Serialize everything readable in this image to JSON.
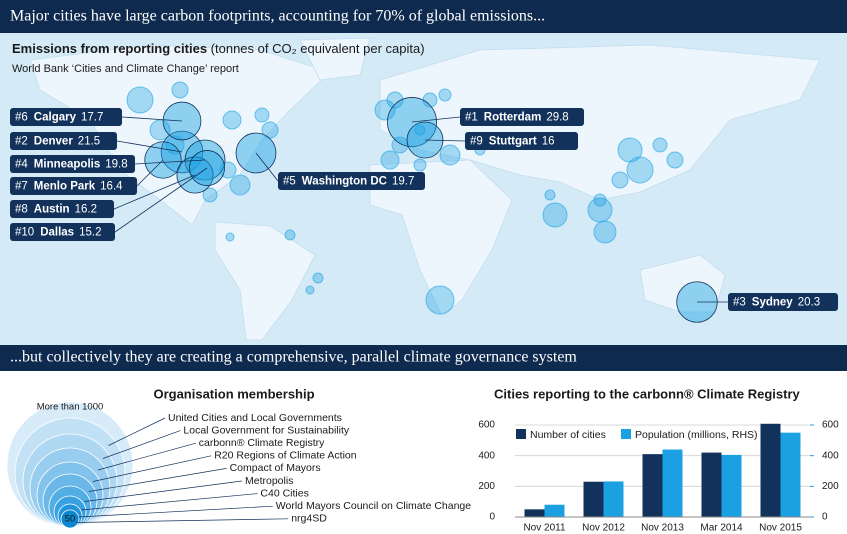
{
  "banner_top": "Major cities have large carbon footprints, accounting for 70% of global emissions...",
  "map": {
    "title": "Emissions from reporting cities",
    "title_note": "(tonnes of CO₂ equivalent per capita)",
    "subtitle": "World Bank ‘Cities and Climate Change’ report",
    "cities": [
      {
        "rank": "#1",
        "name": "Rotterdam",
        "value": 29.8
      },
      {
        "rank": "#2",
        "name": "Denver",
        "value": 21.5
      },
      {
        "rank": "#3",
        "name": "Sydney",
        "value": 20.3
      },
      {
        "rank": "#4",
        "name": "Minneapolis",
        "value": 19.8
      },
      {
        "rank": "#5",
        "name": "Washington DC",
        "value": 19.7
      },
      {
        "rank": "#6",
        "name": "Calgary",
        "value": 17.7
      },
      {
        "rank": "#7",
        "name": "Menlo Park",
        "value": 16.4
      },
      {
        "rank": "#8",
        "name": "Austin",
        "value": 16.2
      },
      {
        "rank": "#9",
        "name": "Stuttgart",
        "value": 16.0
      },
      {
        "rank": "#10",
        "name": "Dallas",
        "value": 15.2
      }
    ]
  },
  "banner_bottom": "...but collectively they are creating a comprehensive, parallel climate governance system",
  "membership": {
    "title": "Organisation membership",
    "top_label": "More than 1000",
    "bottom_label": "50",
    "organisations": [
      "United Cities and Local Governments",
      "Local Government for Sustainability",
      "carbonn® Climate Registry",
      "R20 Regions of Climate Action",
      "Compact of Mayors",
      "Metropolis",
      "C40 Cities",
      "World Mayors Council on Climate Change",
      "nrg4SD"
    ]
  },
  "chart_data": {
    "type": "bar",
    "title": "Cities reporting to the carbonn® Climate Registry",
    "categories": [
      "Nov 2011",
      "Nov 2012",
      "Nov 2013",
      "Mar 2014",
      "Nov 2015"
    ],
    "series": [
      {
        "name": "Number of cities",
        "color": "#12325c",
        "values": [
          50,
          230,
          410,
          420,
          608
        ]
      },
      {
        "name": "Population (millions, RHS)",
        "color": "#1ba1e2",
        "axis": "y2",
        "values": [
          80,
          232,
          440,
          405,
          550
        ]
      }
    ],
    "ylim": [
      0,
      620
    ],
    "yticks": [
      0,
      200,
      400,
      600
    ],
    "y2lim": [
      0,
      620
    ],
    "y2ticks": [
      0,
      200,
      400,
      600
    ],
    "grid": true
  }
}
